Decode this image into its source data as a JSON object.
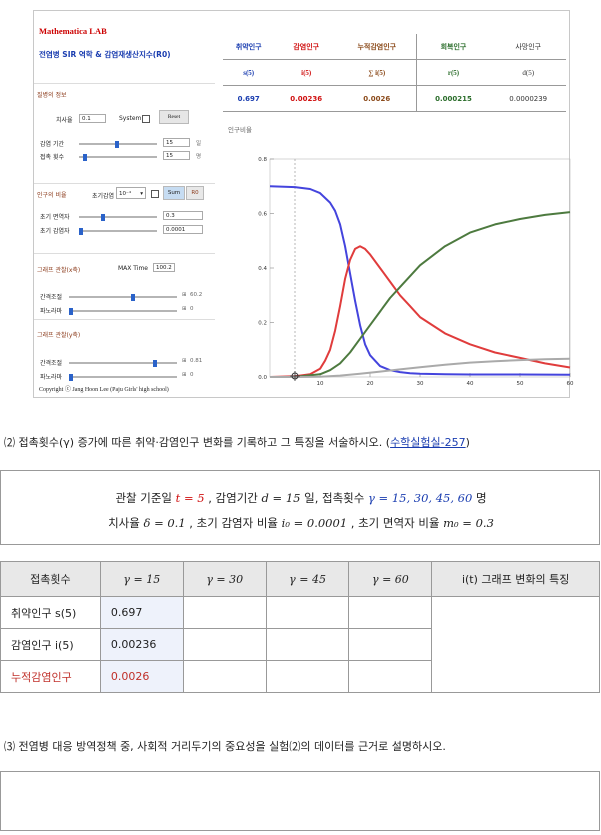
{
  "lab": {
    "title": "Mathematica LAB",
    "subtitle": "전염병 SIR 역학 & 감염재생산지수(R0)",
    "sec_disease": "질병의 정보",
    "lbl_cure": "치사율",
    "val_cure": "0.1",
    "system_label": "System",
    "reset_label": "Reset",
    "lbl_period": "감염 기간",
    "val_period": "15",
    "unit_day": "일",
    "lbl_contact": "접촉 횟수",
    "val_contact": "15",
    "unit_person": "명",
    "sec_ratio": "인구의 비율",
    "lbl_init_infect_sel": "초기감염",
    "val_exp": "10⁻⁴",
    "btn_sum": "Sum",
    "btn_r0": "R0",
    "lbl_immune": "초기 면역자",
    "val_immune": "0.3",
    "lbl_infected": "초기 감염자",
    "val_infected": "0.0001",
    "sec_graph_x": "그래프 관찰(x축)",
    "max_time_label": "MAX Time",
    "max_time_val": "100.2",
    "lbl_interval_x": "간격조절",
    "val_interval_x": "60.2",
    "lbl_pan_x": "파노라마",
    "val_pan_x": "0",
    "sec_graph_y": "그래프 관찰(y축)",
    "lbl_interval_y": "간격조절",
    "val_interval_y": "0.81",
    "lbl_pan_y": "파노라마",
    "val_pan_y": "0",
    "copyright": "Copyright ⓒ Jang Hoon Lee (Paju Girls' high school)",
    "stats": {
      "headers": [
        "취약인구",
        "감염인구",
        "누적감염인구",
        "회복인구",
        "사망인구"
      ],
      "symbols": [
        "s(5)",
        "i(5)",
        "∑ i(5)",
        "r(5)",
        "d(5)"
      ],
      "values": [
        "0.697",
        "0.00236",
        "0.0026",
        "0.000215",
        "0.0000239"
      ],
      "colors": [
        "#1a3db0",
        "#d01010",
        "#8b4a1a",
        "#2c6e2c",
        "#333333"
      ]
    }
  },
  "chart_data": {
    "type": "line",
    "ylabel": "인구비율",
    "xlim": [
      0,
      60
    ],
    "ylim": [
      0,
      0.8
    ],
    "x_ticks": [
      10,
      20,
      30,
      40,
      50,
      60
    ],
    "y_ticks": [
      0.0,
      0.2,
      0.4,
      0.6,
      0.8
    ],
    "y_tick_labels": [
      "0.0",
      "0.2",
      "0.4",
      "0.6",
      "0.8"
    ],
    "marker_x": 5,
    "series": [
      {
        "color": "#4444dd",
        "x": [
          0,
          5,
          8,
          10,
          12,
          13,
          14,
          15,
          16,
          17,
          18,
          19,
          20,
          22,
          24,
          26,
          28,
          30,
          35,
          40,
          50,
          60
        ],
        "y": [
          0.7,
          0.697,
          0.69,
          0.675,
          0.64,
          0.61,
          0.56,
          0.48,
          0.38,
          0.28,
          0.19,
          0.12,
          0.08,
          0.04,
          0.025,
          0.018,
          0.014,
          0.012,
          0.01,
          0.009,
          0.009,
          0.008
        ]
      },
      {
        "color": "#e03c3c",
        "x": [
          0,
          5,
          8,
          10,
          11,
          12,
          13,
          14,
          15,
          16,
          17,
          18,
          19,
          20,
          22,
          24,
          26,
          28,
          30,
          35,
          40,
          45,
          50,
          55,
          60
        ],
        "y": [
          0.0001,
          0.0024,
          0.01,
          0.03,
          0.06,
          0.1,
          0.17,
          0.26,
          0.36,
          0.43,
          0.47,
          0.48,
          0.47,
          0.45,
          0.4,
          0.35,
          0.3,
          0.26,
          0.22,
          0.16,
          0.12,
          0.09,
          0.07,
          0.05,
          0.035
        ]
      },
      {
        "color": "#4d7a3f",
        "x": [
          0,
          5,
          10,
          12,
          14,
          16,
          18,
          20,
          22,
          24,
          26,
          28,
          30,
          35,
          40,
          45,
          50,
          55,
          60
        ],
        "y": [
          0,
          0.0002,
          0.01,
          0.025,
          0.05,
          0.09,
          0.14,
          0.19,
          0.24,
          0.29,
          0.33,
          0.37,
          0.41,
          0.48,
          0.53,
          0.56,
          0.58,
          0.595,
          0.605
        ]
      },
      {
        "color": "#aaaaaa",
        "x": [
          0,
          5,
          10,
          14,
          18,
          22,
          26,
          30,
          35,
          40,
          45,
          50,
          55,
          60
        ],
        "y": [
          0,
          0,
          0.001,
          0.005,
          0.012,
          0.02,
          0.028,
          0.036,
          0.045,
          0.053,
          0.058,
          0.062,
          0.065,
          0.067
        ]
      }
    ]
  },
  "q2": {
    "text": "⑵ 접촉횟수(γ) 증가에 따른 취약·감염인구 변화를 기록하고 그 특징을 서술하시오. (",
    "link": "수학실험실-257",
    "close": ")"
  },
  "cond": {
    "l1_a": "관찰 기준일 ",
    "l1_t": "t = 5",
    "l1_b": " , 감염기간 ",
    "l1_d": "d = 15",
    "l1_c": " 일, 접촉횟수 ",
    "l1_g": "γ = 15, 30, 45, 60",
    "l1_e": " 명",
    "l2_a": "치사율 ",
    "l2_delta": "δ = 0.1",
    "l2_b": " , 초기 감염자 비율 ",
    "l2_i0": "i₀ = 0.0001",
    "l2_c": " , 초기 면역자 비율 ",
    "l2_m0": "m₀ = 0.3"
  },
  "table": {
    "headers": [
      "접촉횟수",
      "γ = 15",
      "γ = 30",
      "γ = 45",
      "γ = 60",
      "i(t) 그래프 변화의 특징"
    ],
    "rows": [
      {
        "label": "취약인구 s(5)",
        "value": "0.697",
        "color": "#222222"
      },
      {
        "label": "감염인구 i(5)",
        "value": "0.00236",
        "color": "#222222"
      },
      {
        "label": "누적감염인구",
        "value": "0.0026",
        "color": "#c0302a"
      }
    ]
  },
  "q3": {
    "text": "⑶ 전염병 대응 방역정책 중, 사회적 거리두기의 중요성을 실험⑵의 데이터를 근거로 설명하시오."
  }
}
